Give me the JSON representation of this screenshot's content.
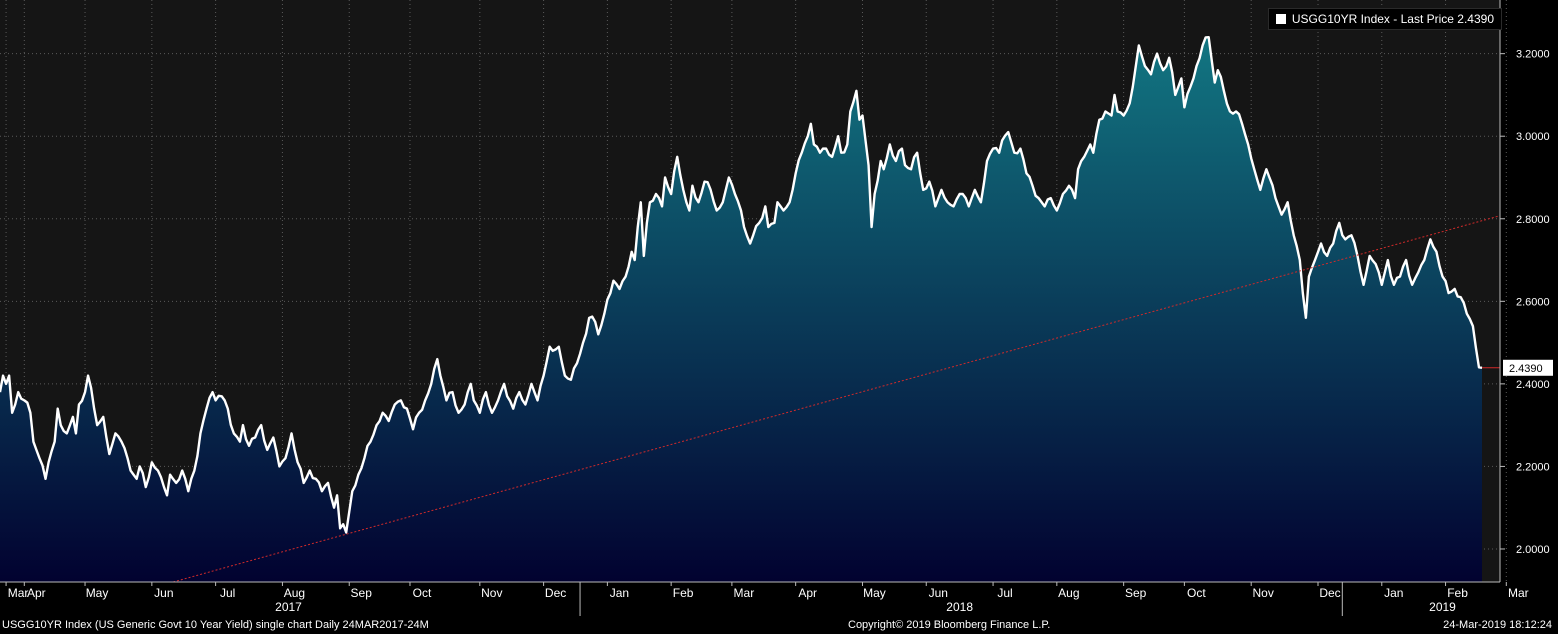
{
  "chart_data": {
    "type": "area",
    "legend": {
      "label": "USGG10YR Index - Last Price 2.4390",
      "position": "top-right"
    },
    "ylim": [
      1.92,
      3.33
    ],
    "y_ticks": [
      "2.0000",
      "2.2000",
      "2.4000",
      "2.6000",
      "2.8000",
      "3.0000",
      "3.2000"
    ],
    "y_tick_values": [
      2.0,
      2.2,
      2.4,
      2.6,
      2.8,
      3.0,
      3.2
    ],
    "last_value": 2.439,
    "last_value_label": "2.4390",
    "grid": true,
    "colors": {
      "line": "#ffffff",
      "fill_top": "#127682",
      "fill_bottom": "#020230",
      "trend": "#d12a2a",
      "background": "#151515"
    },
    "x_ticks": [
      {
        "label": "Mar",
        "i": 2
      },
      {
        "label": "Apr",
        "i": 8
      },
      {
        "label": "May",
        "i": 28
      },
      {
        "label": "Jun",
        "i": 50
      },
      {
        "label": "Jul",
        "i": 71
      },
      {
        "label": "Aug",
        "i": 93
      },
      {
        "label": "Sep",
        "i": 115
      },
      {
        "label": "Oct",
        "i": 135
      },
      {
        "label": "Nov",
        "i": 158
      },
      {
        "label": "Dec",
        "i": 179
      },
      {
        "label": "Jan",
        "i": 200
      },
      {
        "label": "Feb",
        "i": 221
      },
      {
        "label": "Mar",
        "i": 241
      },
      {
        "label": "Apr",
        "i": 262
      },
      {
        "label": "May",
        "i": 284
      },
      {
        "label": "Jun",
        "i": 305
      },
      {
        "label": "Jul",
        "i": 327
      },
      {
        "label": "Aug",
        "i": 348
      },
      {
        "label": "Sep",
        "i": 370
      },
      {
        "label": "Oct",
        "i": 390
      },
      {
        "label": "Nov",
        "i": 412
      },
      {
        "label": "Dec",
        "i": 434
      },
      {
        "label": "Jan",
        "i": 455
      },
      {
        "label": "Feb",
        "i": 476
      },
      {
        "label": "Mar",
        "i": 496
      }
    ],
    "year_labels": [
      {
        "label": "2017",
        "i": 95
      },
      {
        "label": "2018",
        "i": 316
      },
      {
        "label": "2019",
        "i": 475
      }
    ],
    "year_separators": [
      191,
      442
    ],
    "trendline": {
      "start": {
        "i": 57,
        "y": 1.92
      },
      "end": {
        "i": 510,
        "y": 2.84
      }
    },
    "anchors": [
      [
        0,
        2.38
      ],
      [
        1,
        2.42
      ],
      [
        2,
        2.4
      ],
      [
        3,
        2.42
      ],
      [
        4,
        2.33
      ],
      [
        5,
        2.35
      ],
      [
        6,
        2.38
      ],
      [
        8,
        2.36
      ],
      [
        10,
        2.33
      ],
      [
        11,
        2.26
      ],
      [
        13,
        2.22
      ],
      [
        15,
        2.17
      ],
      [
        16,
        2.21
      ],
      [
        18,
        2.26
      ],
      [
        19,
        2.34
      ],
      [
        20,
        2.3
      ],
      [
        22,
        2.28
      ],
      [
        24,
        2.32
      ],
      [
        25,
        2.28
      ],
      [
        26,
        2.35
      ],
      [
        28,
        2.38
      ],
      [
        29,
        2.42
      ],
      [
        30,
        2.39
      ],
      [
        31,
        2.34
      ],
      [
        32,
        2.3
      ],
      [
        34,
        2.32
      ],
      [
        36,
        2.23
      ],
      [
        38,
        2.28
      ],
      [
        40,
        2.26
      ],
      [
        42,
        2.22
      ],
      [
        43,
        2.19
      ],
      [
        45,
        2.17
      ],
      [
        46,
        2.2
      ],
      [
        48,
        2.15
      ],
      [
        50,
        2.21
      ],
      [
        52,
        2.19
      ],
      [
        54,
        2.15
      ],
      [
        55,
        2.13
      ],
      [
        56,
        2.18
      ],
      [
        58,
        2.16
      ],
      [
        60,
        2.19
      ],
      [
        62,
        2.14
      ],
      [
        64,
        2.19
      ],
      [
        66,
        2.28
      ],
      [
        68,
        2.34
      ],
      [
        70,
        2.38
      ],
      [
        71,
        2.36
      ],
      [
        73,
        2.37
      ],
      [
        75,
        2.34
      ],
      [
        77,
        2.28
      ],
      [
        79,
        2.26
      ],
      [
        80,
        2.3
      ],
      [
        82,
        2.25
      ],
      [
        84,
        2.27
      ],
      [
        86,
        2.3
      ],
      [
        88,
        2.24
      ],
      [
        90,
        2.27
      ],
      [
        92,
        2.2
      ],
      [
        94,
        2.22
      ],
      [
        96,
        2.28
      ],
      [
        98,
        2.21
      ],
      [
        100,
        2.16
      ],
      [
        102,
        2.19
      ],
      [
        104,
        2.17
      ],
      [
        106,
        2.14
      ],
      [
        108,
        2.16
      ],
      [
        110,
        2.1
      ],
      [
        111,
        2.13
      ],
      [
        112,
        2.05
      ],
      [
        113,
        2.06
      ],
      [
        114,
        2.04
      ],
      [
        115,
        2.09
      ],
      [
        116,
        2.14
      ],
      [
        118,
        2.18
      ],
      [
        120,
        2.22
      ],
      [
        122,
        2.26
      ],
      [
        124,
        2.3
      ],
      [
        126,
        2.33
      ],
      [
        128,
        2.31
      ],
      [
        130,
        2.35
      ],
      [
        132,
        2.36
      ],
      [
        134,
        2.34
      ],
      [
        136,
        2.29
      ],
      [
        138,
        2.33
      ],
      [
        140,
        2.36
      ],
      [
        142,
        2.4
      ],
      [
        144,
        2.46
      ],
      [
        145,
        2.42
      ],
      [
        147,
        2.36
      ],
      [
        149,
        2.38
      ],
      [
        151,
        2.33
      ],
      [
        153,
        2.35
      ],
      [
        155,
        2.4
      ],
      [
        156,
        2.36
      ],
      [
        158,
        2.33
      ],
      [
        160,
        2.38
      ],
      [
        162,
        2.33
      ],
      [
        164,
        2.36
      ],
      [
        166,
        2.4
      ],
      [
        167,
        2.37
      ],
      [
        169,
        2.34
      ],
      [
        171,
        2.38
      ],
      [
        173,
        2.35
      ],
      [
        175,
        2.4
      ],
      [
        177,
        2.36
      ],
      [
        179,
        2.42
      ],
      [
        181,
        2.49
      ],
      [
        182,
        2.48
      ],
      [
        184,
        2.49
      ],
      [
        186,
        2.42
      ],
      [
        188,
        2.41
      ],
      [
        190,
        2.45
      ],
      [
        192,
        2.5
      ],
      [
        194,
        2.56
      ],
      [
        196,
        2.55
      ],
      [
        197,
        2.52
      ],
      [
        199,
        2.57
      ],
      [
        201,
        2.62
      ],
      [
        202,
        2.65
      ],
      [
        204,
        2.63
      ],
      [
        206,
        2.66
      ],
      [
        208,
        2.72
      ],
      [
        209,
        2.7
      ],
      [
        210,
        2.78
      ],
      [
        211,
        2.84
      ],
      [
        212,
        2.71
      ],
      [
        213,
        2.79
      ],
      [
        214,
        2.84
      ],
      [
        216,
        2.86
      ],
      [
        218,
        2.83
      ],
      [
        219,
        2.9
      ],
      [
        221,
        2.86
      ],
      [
        223,
        2.95
      ],
      [
        225,
        2.87
      ],
      [
        227,
        2.82
      ],
      [
        228,
        2.88
      ],
      [
        230,
        2.84
      ],
      [
        232,
        2.89
      ],
      [
        234,
        2.87
      ],
      [
        236,
        2.82
      ],
      [
        238,
        2.84
      ],
      [
        240,
        2.9
      ],
      [
        242,
        2.86
      ],
      [
        244,
        2.82
      ],
      [
        245,
        2.78
      ],
      [
        247,
        2.74
      ],
      [
        248,
        2.76
      ],
      [
        250,
        2.79
      ],
      [
        252,
        2.83
      ],
      [
        253,
        2.78
      ],
      [
        255,
        2.79
      ],
      [
        256,
        2.84
      ],
      [
        258,
        2.82
      ],
      [
        260,
        2.84
      ],
      [
        262,
        2.91
      ],
      [
        264,
        2.96
      ],
      [
        266,
        3.0
      ],
      [
        267,
        3.03
      ],
      [
        268,
        2.98
      ],
      [
        270,
        2.96
      ],
      [
        272,
        2.97
      ],
      [
        274,
        2.95
      ],
      [
        276,
        3.0
      ],
      [
        277,
        2.96
      ],
      [
        279,
        2.98
      ],
      [
        280,
        3.06
      ],
      [
        282,
        3.11
      ],
      [
        283,
        3.04
      ],
      [
        284,
        3.05
      ],
      [
        285,
        2.99
      ],
      [
        286,
        2.93
      ],
      [
        287,
        2.78
      ],
      [
        288,
        2.86
      ],
      [
        290,
        2.94
      ],
      [
        291,
        2.92
      ],
      [
        293,
        2.98
      ],
      [
        295,
        2.94
      ],
      [
        297,
        2.97
      ],
      [
        298,
        2.93
      ],
      [
        300,
        2.92
      ],
      [
        302,
        2.96
      ],
      [
        304,
        2.87
      ],
      [
        306,
        2.89
      ],
      [
        308,
        2.83
      ],
      [
        310,
        2.87
      ],
      [
        312,
        2.84
      ],
      [
        314,
        2.83
      ],
      [
        316,
        2.86
      ],
      [
        318,
        2.85
      ],
      [
        319,
        2.83
      ],
      [
        321,
        2.87
      ],
      [
        323,
        2.84
      ],
      [
        325,
        2.94
      ],
      [
        327,
        2.97
      ],
      [
        329,
        2.96
      ],
      [
        330,
        2.99
      ],
      [
        332,
        3.01
      ],
      [
        334,
        2.96
      ],
      [
        336,
        2.97
      ],
      [
        338,
        2.91
      ],
      [
        340,
        2.88
      ],
      [
        342,
        2.85
      ],
      [
        344,
        2.83
      ],
      [
        346,
        2.85
      ],
      [
        348,
        2.82
      ],
      [
        350,
        2.86
      ],
      [
        352,
        2.88
      ],
      [
        354,
        2.85
      ],
      [
        355,
        2.92
      ],
      [
        357,
        2.95
      ],
      [
        359,
        2.98
      ],
      [
        360,
        2.96
      ],
      [
        362,
        3.04
      ],
      [
        364,
        3.06
      ],
      [
        366,
        3.05
      ],
      [
        367,
        3.1
      ],
      [
        368,
        3.06
      ],
      [
        370,
        3.05
      ],
      [
        372,
        3.08
      ],
      [
        374,
        3.17
      ],
      [
        375,
        3.22
      ],
      [
        377,
        3.17
      ],
      [
        379,
        3.15
      ],
      [
        381,
        3.2
      ],
      [
        383,
        3.16
      ],
      [
        385,
        3.19
      ],
      [
        387,
        3.1
      ],
      [
        389,
        3.14
      ],
      [
        390,
        3.07
      ],
      [
        392,
        3.12
      ],
      [
        394,
        3.17
      ],
      [
        396,
        3.22
      ],
      [
        398,
        3.24
      ],
      [
        400,
        3.13
      ],
      [
        401,
        3.16
      ],
      [
        403,
        3.11
      ],
      [
        405,
        3.06
      ],
      [
        407,
        3.06
      ],
      [
        409,
        3.03
      ],
      [
        411,
        2.98
      ],
      [
        413,
        2.92
      ],
      [
        415,
        2.87
      ],
      [
        417,
        2.92
      ],
      [
        418,
        2.9
      ],
      [
        420,
        2.85
      ],
      [
        422,
        2.81
      ],
      [
        424,
        2.84
      ],
      [
        426,
        2.76
      ],
      [
        428,
        2.7
      ],
      [
        429,
        2.62
      ],
      [
        430,
        2.56
      ],
      [
        431,
        2.66
      ],
      [
        433,
        2.7
      ],
      [
        435,
        2.74
      ],
      [
        437,
        2.71
      ],
      [
        439,
        2.74
      ],
      [
        441,
        2.79
      ],
      [
        443,
        2.75
      ],
      [
        445,
        2.76
      ],
      [
        447,
        2.71
      ],
      [
        449,
        2.64
      ],
      [
        451,
        2.71
      ],
      [
        453,
        2.69
      ],
      [
        455,
        2.64
      ],
      [
        457,
        2.7
      ],
      [
        459,
        2.64
      ],
      [
        461,
        2.66
      ],
      [
        463,
        2.7
      ],
      [
        465,
        2.64
      ],
      [
        467,
        2.67
      ],
      [
        469,
        2.7
      ],
      [
        471,
        2.75
      ],
      [
        473,
        2.72
      ],
      [
        475,
        2.66
      ],
      [
        477,
        2.62
      ],
      [
        479,
        2.63
      ],
      [
        481,
        2.61
      ],
      [
        483,
        2.57
      ],
      [
        485,
        2.54
      ],
      [
        487,
        2.44
      ],
      [
        488,
        2.439
      ]
    ]
  },
  "footer": {
    "left": "USGG10YR Index (US Generic Govt 10 Year Yield) single chart  Daily 24MAR2017-24M",
    "center": "Copyright© 2019 Bloomberg Finance L.P.",
    "right": "24-Mar-2019 18:12:24"
  }
}
